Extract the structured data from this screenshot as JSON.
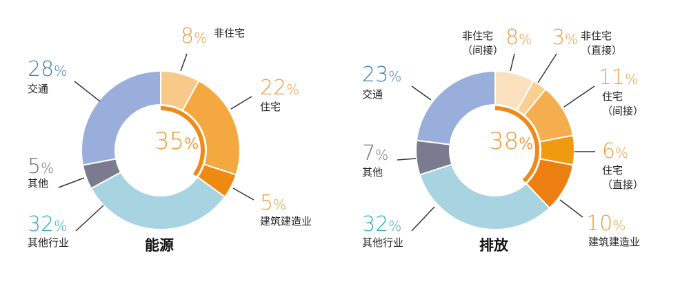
{
  "chart_data": [
    {
      "type": "pie",
      "title": "能源",
      "center_label": {
        "value": "35",
        "unit": "%"
      },
      "inner_arc_share": 35,
      "slices": [
        {
          "label": "非住宅",
          "value": 8,
          "color": "#f9c98a",
          "text_color": "#ef9a3a"
        },
        {
          "label": "住宅",
          "value": 22,
          "color": "#f4a940",
          "text_color": "#ef9a3a"
        },
        {
          "label": "建筑建造业",
          "value": 5,
          "color": "#ee8a10",
          "text_color": "#ef9a3a"
        },
        {
          "label": "其他行业",
          "value": 32,
          "color": "#a8d3e0",
          "text_color": "#2ab0b8"
        },
        {
          "label": "其他",
          "value": 5,
          "color": "#7a7b8e",
          "text_color": "#6d6d7a"
        },
        {
          "label": "交通",
          "value": 28,
          "color": "#9aaedb",
          "text_color": "#3a7fb5"
        }
      ]
    },
    {
      "type": "pie",
      "title": "排放",
      "center_label": {
        "value": "38",
        "unit": "%"
      },
      "inner_arc_share": 38,
      "slices": [
        {
          "label": "非住宅",
          "sublabel": "（间接）",
          "value": 8,
          "color": "#fbe0bd",
          "text_color": "#ef9a3a"
        },
        {
          "label": "非住宅",
          "sublabel": "（直接）",
          "value": 3,
          "color": "#f8cf90",
          "text_color": "#ef9a3a"
        },
        {
          "label": "住宅",
          "sublabel": "（间接）",
          "value": 11,
          "color": "#f4ae4d",
          "text_color": "#ef9a3a"
        },
        {
          "label": "住宅",
          "sublabel": "（直接）",
          "value": 6,
          "color": "#f09a10",
          "text_color": "#ef9a3a"
        },
        {
          "label": "建筑建造业",
          "value": 10,
          "color": "#ec7e12",
          "text_color": "#ef9a3a"
        },
        {
          "label": "其他行业",
          "value": 32,
          "color": "#a8d3e0",
          "text_color": "#2ab0b8"
        },
        {
          "label": "其他",
          "value": 7,
          "color": "#7a7b8e",
          "text_color": "#6d6d7a"
        },
        {
          "label": "交通",
          "value": 23,
          "color": "#9aaedb",
          "text_color": "#3a7fb5"
        }
      ]
    }
  ],
  "percent_unit": "%",
  "inner_arc_color": "#ef8a1a",
  "leader_color": "#333333"
}
